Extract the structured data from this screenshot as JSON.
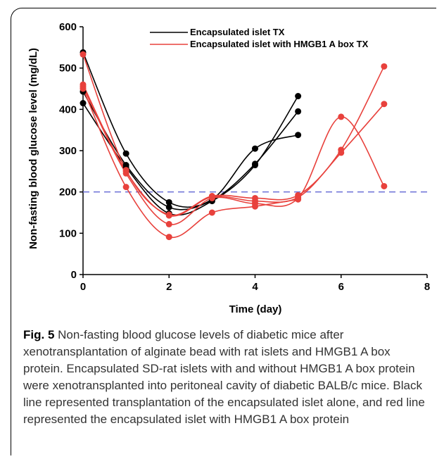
{
  "chart_data": {
    "type": "line",
    "xlabel": "Time (day)",
    "ylabel": "Non-fasting blood glucose level (mg/dL)",
    "xlim": [
      0,
      8
    ],
    "ylim": [
      0,
      600
    ],
    "x_ticks": [
      "0",
      "2",
      "4",
      "6",
      "8"
    ],
    "y_ticks": [
      "0",
      "100",
      "200",
      "300",
      "400",
      "500",
      "600"
    ],
    "threshold": 200,
    "legend": [
      {
        "label": "Encapsulated islet TX",
        "color": "#000000"
      },
      {
        "label": "Encapsulated islet with HMGB1 A box TX",
        "color": "#e8413c"
      }
    ],
    "series": [
      {
        "group": "Encapsulated islet TX",
        "color": "#000000",
        "points": [
          [
            0,
            538
          ],
          [
            1,
            293
          ],
          [
            2,
            175
          ],
          [
            3,
            182
          ],
          [
            4,
            305
          ],
          [
            5,
            338
          ]
        ]
      },
      {
        "group": "Encapsulated islet TX",
        "color": "#000000",
        "points": [
          [
            0,
            443
          ],
          [
            1,
            265
          ],
          [
            2,
            163
          ],
          [
            3,
            180
          ],
          [
            4,
            268
          ],
          [
            5,
            395
          ]
        ]
      },
      {
        "group": "Encapsulated islet TX",
        "color": "#000000",
        "points": [
          [
            0,
            415
          ],
          [
            1,
            260
          ],
          [
            2,
            148
          ],
          [
            3,
            178
          ],
          [
            4,
            265
          ],
          [
            5,
            432
          ]
        ]
      },
      {
        "group": "Encapsulated islet with HMGB1 A box TX",
        "color": "#e8413c",
        "points": [
          [
            0,
            533
          ],
          [
            1,
            253
          ],
          [
            2,
            145
          ],
          [
            3,
            190
          ],
          [
            4,
            185
          ],
          [
            5,
            192
          ],
          [
            6,
            302
          ],
          [
            7,
            504
          ]
        ]
      },
      {
        "group": "Encapsulated islet with HMGB1 A box TX",
        "color": "#e8413c",
        "points": [
          [
            0,
            460
          ],
          [
            1,
            250
          ],
          [
            2,
            143
          ],
          [
            3,
            188
          ],
          [
            4,
            178
          ],
          [
            5,
            187
          ],
          [
            6,
            295
          ],
          [
            7,
            413
          ]
        ]
      },
      {
        "group": "Encapsulated islet with HMGB1 A box TX",
        "color": "#e8413c",
        "points": [
          [
            0,
            455
          ],
          [
            1,
            245
          ],
          [
            2,
            122
          ],
          [
            3,
            185
          ],
          [
            4,
            172
          ],
          [
            5,
            185
          ],
          [
            6,
            382
          ],
          [
            7,
            214
          ]
        ]
      },
      {
        "group": "Encapsulated islet with HMGB1 A box TX",
        "color": "#e8413c",
        "points": [
          [
            0,
            450
          ],
          [
            1,
            212
          ],
          [
            2,
            91
          ],
          [
            3,
            150
          ],
          [
            4,
            165
          ],
          [
            5,
            182
          ]
        ]
      }
    ]
  },
  "caption": {
    "label": "Fig. 5",
    "text": " Non-fasting blood glucose levels of diabetic mice after xenotransplantation of alginate bead with rat islets and HMGB1 A box protein. Encapsulated SD-rat islets with and without HMGB1 A box protein were xenotransplanted into peritoneal cavity of diabetic BALB/c mice. Black line represented transplantation of the encapsulated islet alone, and red line represented the encapsulated islet with HMGB1 A box protein"
  }
}
